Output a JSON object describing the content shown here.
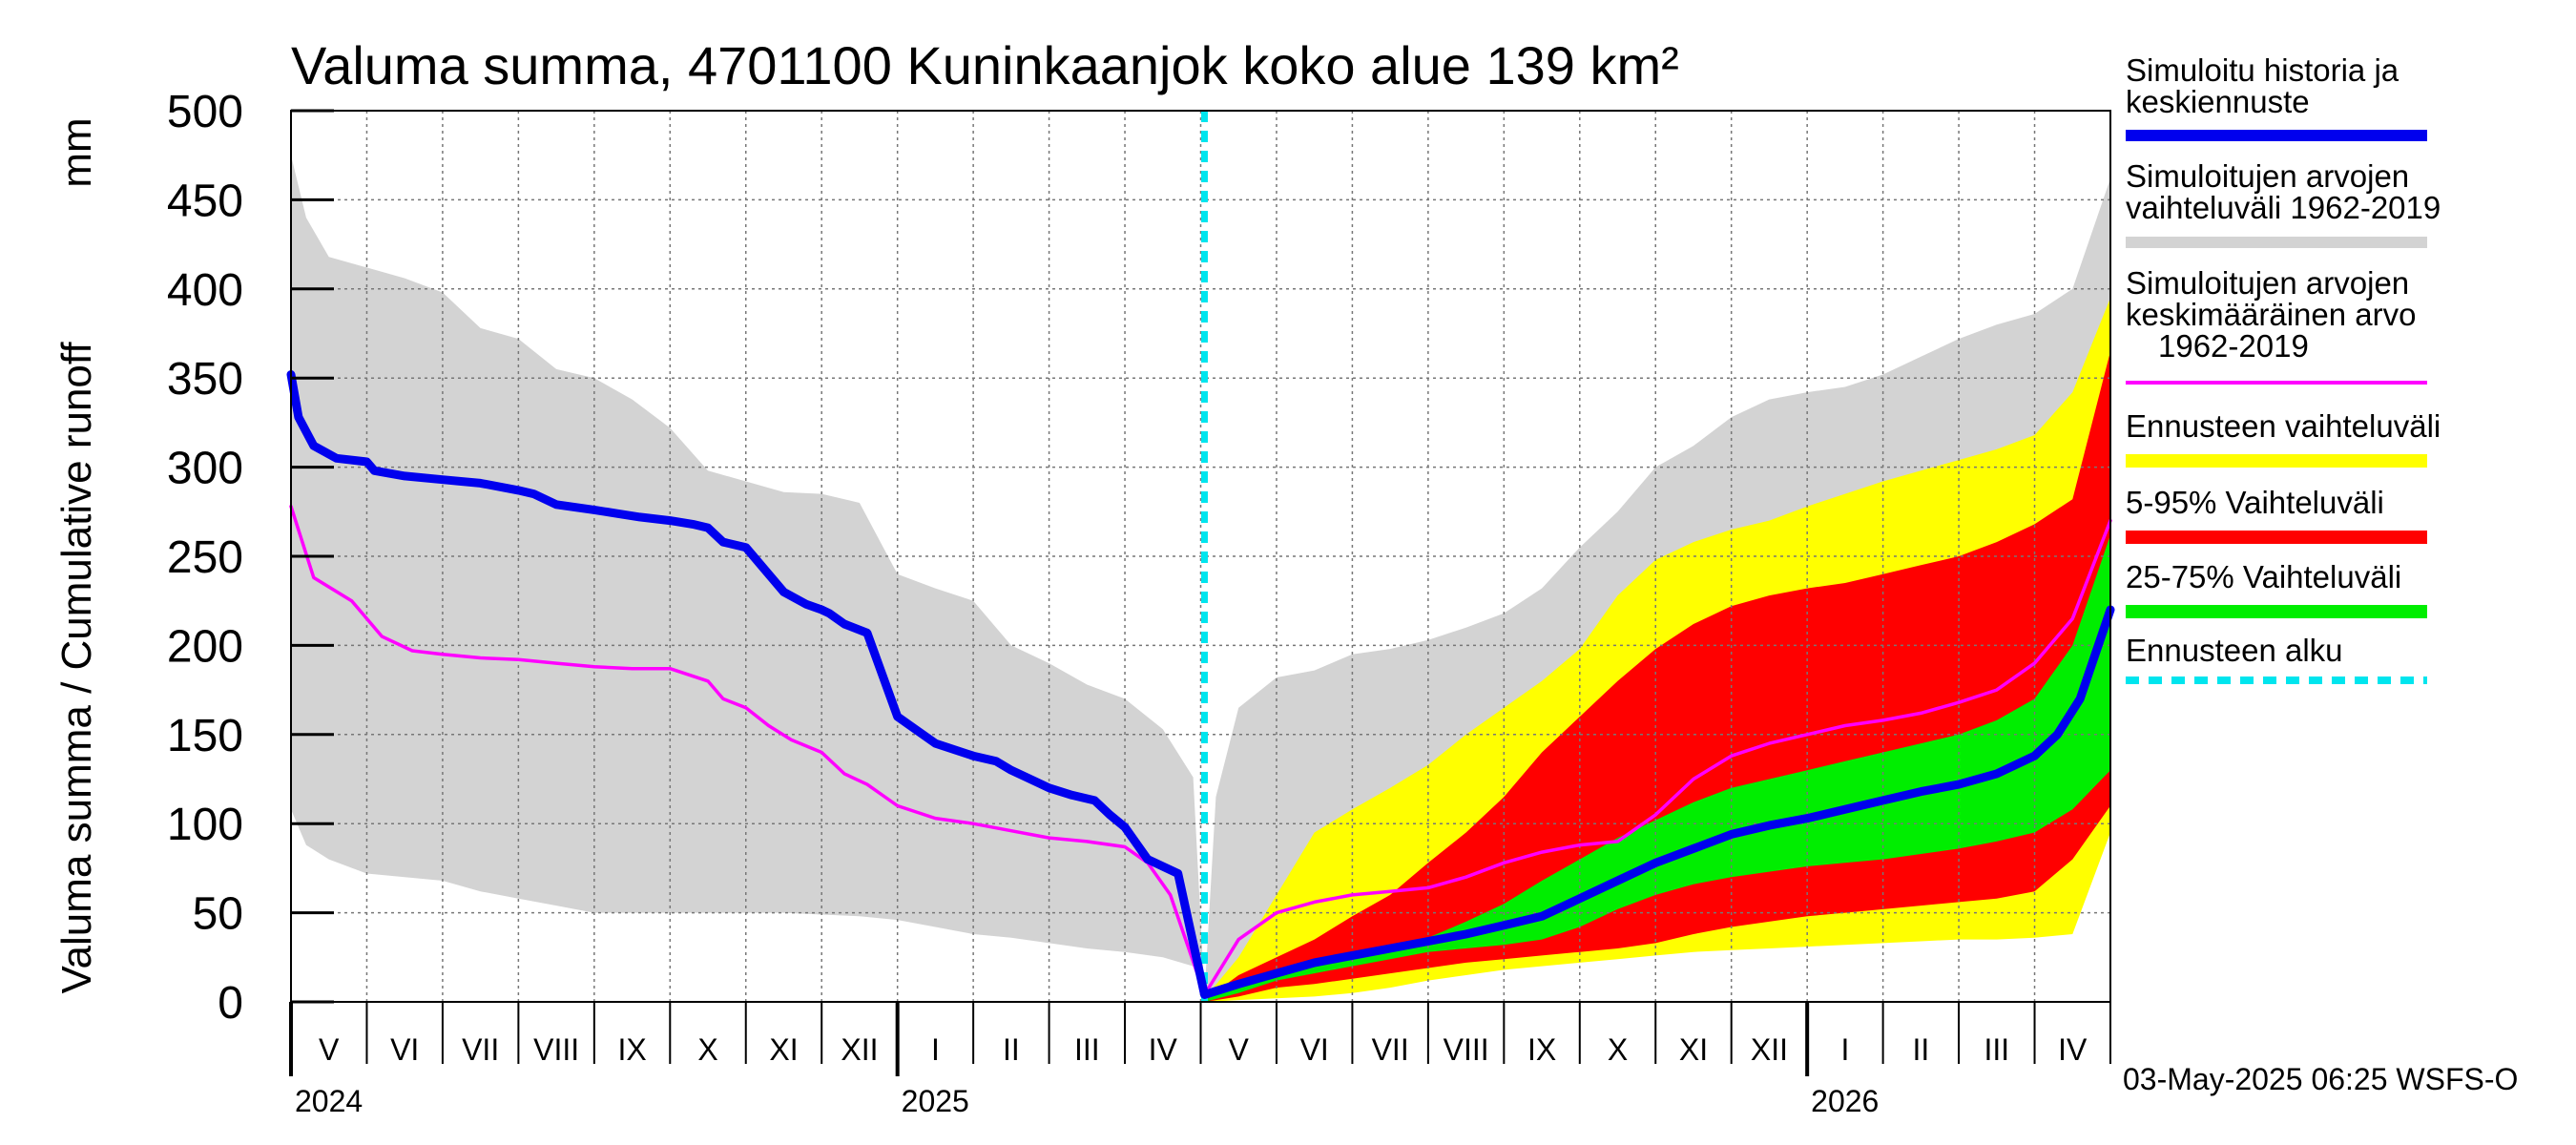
{
  "chart_data": {
    "type": "area",
    "title": "Valuma summa, 4701100 Kuninkaanjok koko alue 139 km²",
    "ylabel": "Valuma summa / Cumulative runoff",
    "yunit": "mm",
    "ylim": [
      0,
      500
    ],
    "yticks": [
      0,
      50,
      100,
      150,
      200,
      250,
      300,
      350,
      400,
      450,
      500
    ],
    "x_axis": {
      "unit": "months since 2024-05-01",
      "range": [
        0,
        24
      ],
      "months": [
        "V",
        "VI",
        "VII",
        "VIII",
        "IX",
        "X",
        "XI",
        "XII",
        "I",
        "II",
        "III",
        "IV",
        "V",
        "VI",
        "VII",
        "VIII",
        "IX",
        "X",
        "XI",
        "XII",
        "I",
        "II",
        "III",
        "IV"
      ],
      "years": [
        {
          "label": "2024",
          "month_index": 0
        },
        {
          "label": "2025",
          "month_index": 8
        },
        {
          "label": "2026",
          "month_index": 20
        }
      ],
      "forecast_start": 12.05
    },
    "series": [
      {
        "name": "Simuloitu historia ja keskiennuste",
        "kind": "line",
        "color": "#0000ee",
        "x": [
          0,
          0.1,
          0.3,
          0.6,
          1.0,
          1.1,
          1.5,
          2,
          2.5,
          3,
          3.2,
          3.5,
          4,
          4.3,
          4.6,
          5.0,
          5.3,
          5.5,
          5.7,
          6,
          6.5,
          6.8,
          7,
          7.1,
          7.3,
          7.6,
          8,
          8.5,
          9,
          9.3,
          9.5,
          9.7,
          10,
          10.3,
          10.6,
          10.8,
          11,
          11.3,
          11.7,
          12.05,
          12.5,
          13,
          13.5,
          14,
          14.5,
          15,
          15.5,
          16,
          16.5,
          17,
          17.5,
          18,
          18.5,
          19,
          19.5,
          20,
          20.5,
          21,
          21.5,
          22,
          22.5,
          23,
          23.3,
          23.6,
          23.8,
          24
        ],
        "y": [
          352,
          328,
          312,
          305,
          303,
          298,
          295,
          293,
          291,
          287,
          285,
          279,
          276,
          274,
          272,
          270,
          268,
          266,
          258,
          255,
          230,
          223,
          220,
          218,
          212,
          207,
          160,
          145,
          138,
          135,
          130,
          126,
          120,
          116,
          113,
          105,
          98,
          80,
          72,
          4,
          10,
          16,
          22,
          26,
          30,
          34,
          38,
          43,
          48,
          58,
          68,
          78,
          86,
          94,
          99,
          103,
          108,
          113,
          118,
          122,
          128,
          138,
          150,
          170,
          195,
          220
        ]
      },
      {
        "name": "Simuloitujen arvojen keskimääräinen arvo 1962-2019",
        "kind": "line",
        "color": "#ff00ff",
        "x": [
          0,
          0.3,
          0.8,
          1.2,
          1.6,
          2,
          2.5,
          3,
          3.5,
          4,
          4.5,
          5,
          5.5,
          5.7,
          6,
          6.3,
          6.6,
          7,
          7.3,
          7.6,
          8,
          8.5,
          9,
          9.5,
          10,
          10.5,
          11,
          11.3,
          11.6,
          12.05,
          12.5,
          13,
          13.5,
          14,
          14.5,
          15,
          15.5,
          16,
          16.5,
          17,
          17.5,
          18,
          18.5,
          19,
          19.5,
          20,
          20.5,
          21,
          21.5,
          22,
          22.5,
          23,
          23.5,
          24
        ],
        "y": [
          278,
          238,
          225,
          205,
          197,
          195,
          193,
          192,
          190,
          188,
          187,
          187,
          180,
          170,
          165,
          155,
          147,
          140,
          128,
          122,
          110,
          103,
          100,
          96,
          92,
          90,
          87,
          78,
          60,
          4,
          35,
          50,
          56,
          60,
          62,
          64,
          70,
          78,
          84,
          88,
          90,
          105,
          125,
          138,
          145,
          150,
          155,
          158,
          162,
          168,
          175,
          190,
          215,
          270
        ]
      }
    ],
    "bands": [
      {
        "name": "Simuloitujen arvojen vaihteluväli 1962-2019",
        "color": "#d3d3d3",
        "x": [
          0,
          0.2,
          0.5,
          1,
          1.5,
          2,
          2.5,
          3,
          3.5,
          4,
          4.5,
          5,
          5.5,
          6,
          6.5,
          7,
          7.5,
          8,
          8.5,
          9,
          9.5,
          10,
          10.5,
          11,
          11.5,
          11.9,
          12.05,
          12.2,
          12.5,
          13,
          13.5,
          14,
          14.5,
          15,
          15.5,
          16,
          16.5,
          17,
          17.5,
          18,
          18.5,
          19,
          19.5,
          20,
          20.5,
          21,
          21.5,
          22,
          22.5,
          23,
          23.5,
          24
        ],
        "upper": [
          475,
          440,
          418,
          412,
          406,
          398,
          378,
          372,
          355,
          350,
          338,
          322,
          298,
          292,
          286,
          285,
          280,
          240,
          232,
          225,
          200,
          190,
          178,
          170,
          153,
          126,
          4,
          115,
          165,
          182,
          186,
          195,
          198,
          203,
          210,
          218,
          232,
          255,
          275,
          300,
          312,
          328,
          338,
          342,
          345,
          352,
          362,
          372,
          380,
          386,
          400,
          462
        ],
        "lower": [
          108,
          88,
          80,
          72,
          70,
          68,
          62,
          58,
          54,
          50,
          50,
          50,
          50,
          50,
          50,
          49,
          48,
          46,
          42,
          38,
          36,
          33,
          30,
          28,
          25,
          20,
          2,
          2,
          3,
          5,
          7,
          9,
          12,
          16,
          18,
          20,
          24,
          27,
          30,
          34,
          37,
          38,
          40,
          40,
          41,
          42,
          42,
          42,
          42,
          43,
          50,
          100
        ]
      },
      {
        "name": "Ennusteen vaihteluväli",
        "color": "#ffff00",
        "x": [
          12.05,
          12.5,
          13,
          13.5,
          14,
          14.5,
          15,
          15.5,
          16,
          16.5,
          17,
          17.5,
          18,
          18.5,
          19,
          19.5,
          20,
          20.5,
          21,
          21.5,
          22,
          22.5,
          23,
          23.5,
          24
        ],
        "upper": [
          2,
          25,
          60,
          95,
          108,
          120,
          133,
          150,
          165,
          180,
          198,
          228,
          248,
          258,
          265,
          270,
          278,
          285,
          292,
          298,
          304,
          310,
          318,
          342,
          395
        ],
        "lower": [
          0,
          1,
          2,
          3,
          5,
          8,
          12,
          15,
          18,
          20,
          22,
          24,
          26,
          28,
          29,
          30,
          31,
          32,
          33,
          34,
          35,
          35,
          36,
          38,
          95
        ]
      },
      {
        "name": "5-95% Vaihteluväli",
        "color": "#ff0000",
        "x": [
          12.05,
          12.5,
          13,
          13.5,
          14,
          14.5,
          15,
          15.5,
          16,
          16.5,
          17,
          17.5,
          18,
          18.5,
          19,
          19.5,
          20,
          20.5,
          21,
          21.5,
          22,
          22.5,
          23,
          23.5,
          24
        ],
        "upper": [
          1,
          15,
          25,
          35,
          48,
          60,
          78,
          95,
          115,
          140,
          160,
          180,
          198,
          212,
          222,
          228,
          232,
          235,
          240,
          245,
          250,
          258,
          268,
          282,
          365
        ],
        "lower": [
          0,
          3,
          8,
          10,
          13,
          16,
          19,
          22,
          24,
          26,
          28,
          30,
          33,
          38,
          42,
          45,
          48,
          50,
          52,
          54,
          56,
          58,
          62,
          80,
          110
        ]
      },
      {
        "name": "25-75% Vaihteluväli",
        "color": "#00ee00",
        "x": [
          12.05,
          12.5,
          13,
          13.5,
          14,
          14.5,
          15,
          15.5,
          16,
          16.5,
          17,
          17.5,
          18,
          18.5,
          19,
          19.5,
          20,
          20.5,
          21,
          21.5,
          22,
          22.5,
          23,
          23.5,
          24
        ],
        "upper": [
          1,
          10,
          15,
          20,
          25,
          30,
          36,
          45,
          55,
          68,
          80,
          92,
          102,
          112,
          120,
          125,
          130,
          135,
          140,
          145,
          150,
          158,
          170,
          200,
          262
        ],
        "lower": [
          0,
          5,
          12,
          16,
          20,
          24,
          28,
          30,
          32,
          35,
          42,
          52,
          60,
          66,
          70,
          73,
          76,
          78,
          80,
          83,
          86,
          90,
          95,
          108,
          130
        ]
      }
    ],
    "legend": [
      {
        "label": "Simuloitu historia ja keskiennuste",
        "color": "#0000ee",
        "style": "line"
      },
      {
        "label": "Simuloitujen arvojen vaihteluväli 1962-2019",
        "color": "#d3d3d3",
        "style": "line"
      },
      {
        "label": "Simuloitujen arvojen keskimääräinen arvo 1962-2019",
        "color": "#ff00ff",
        "style": "thin"
      },
      {
        "label": "Ennusteen vaihteluväli",
        "color": "#ffff00",
        "style": "line"
      },
      {
        "label": "5-95% Vaihteluväli",
        "color": "#ff0000",
        "style": "line"
      },
      {
        "label": "25-75% Vaihteluväli",
        "color": "#00ee00",
        "style": "line"
      },
      {
        "label": "Ennusteen alku",
        "color": "#00e5ee",
        "style": "dashed"
      }
    ]
  },
  "legend_text": {
    "l1a": "Simuloitu historia ja",
    "l1b": "keskiennuste",
    "l2a": "Simuloitujen arvojen",
    "l2b": "vaihteluväli 1962-2019",
    "l3a": "Simuloitujen arvojen",
    "l3b": "keskimääräinen arvo",
    "l3c": "1962-2019",
    "l4": "Ennusteen vaihteluväli",
    "l5": "5-95% Vaihteluväli",
    "l6": "25-75% Vaihteluväli",
    "l7": "Ennusteen alku"
  },
  "footer": {
    "timestamp": "03-May-2025 06:25 WSFS-O"
  }
}
